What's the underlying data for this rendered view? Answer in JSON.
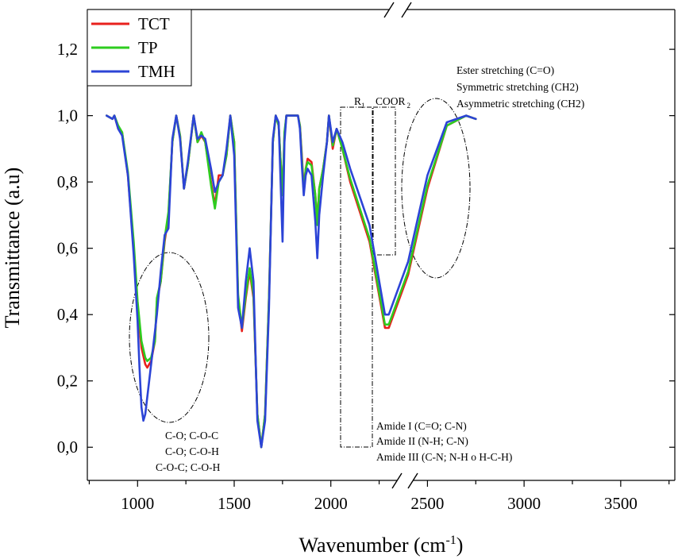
{
  "chart_data": {
    "type": "line",
    "title": "",
    "xlabel": "Wavenumber (cm",
    "xlabel_sup": "-1",
    "xlabel_close": ")",
    "ylabel": "Transmittance (a.u)",
    "xlim": [
      740,
      3780
    ],
    "ylim": [
      -0.1,
      1.32
    ],
    "x_axis_break": [
      1740,
      1810
    ],
    "x_ticks": [
      1000,
      1500,
      2000,
      2500,
      3000,
      3500
    ],
    "x_tick_labels": [
      "1000",
      "1500",
      "2000",
      "2500",
      "3000",
      "3500"
    ],
    "y_ticks": [
      0.0,
      0.2,
      0.4,
      0.6,
      0.8,
      1.0,
      1.2
    ],
    "y_tick_labels": [
      "0,0",
      "0,2",
      "0,4",
      "0,6",
      "0,8",
      "1,0",
      "1,2"
    ],
    "legend": {
      "position": "top-left",
      "entries": [
        "TCT",
        "TP",
        "TMH"
      ]
    },
    "series": [
      {
        "name": "TCT",
        "color": "#e8211d",
        "points": [
          [
            840,
            1.0
          ],
          [
            870,
            0.99
          ],
          [
            880,
            1.0
          ],
          [
            900,
            0.96
          ],
          [
            920,
            0.95
          ],
          [
            950,
            0.82
          ],
          [
            980,
            0.6
          ],
          [
            1000,
            0.42
          ],
          [
            1020,
            0.3
          ],
          [
            1040,
            0.25
          ],
          [
            1050,
            0.24
          ],
          [
            1070,
            0.26
          ],
          [
            1090,
            0.32
          ],
          [
            1100,
            0.44
          ],
          [
            1120,
            0.5
          ],
          [
            1140,
            0.62
          ],
          [
            1160,
            0.7
          ],
          [
            1180,
            0.92
          ],
          [
            1200,
            1.0
          ],
          [
            1220,
            0.94
          ],
          [
            1240,
            0.78
          ],
          [
            1260,
            0.85
          ],
          [
            1290,
            1.0
          ],
          [
            1310,
            0.92
          ],
          [
            1330,
            0.94
          ],
          [
            1350,
            0.92
          ],
          [
            1380,
            0.8
          ],
          [
            1400,
            0.73
          ],
          [
            1420,
            0.82
          ],
          [
            1440,
            0.82
          ],
          [
            1460,
            0.88
          ],
          [
            1480,
            1.0
          ],
          [
            1500,
            0.92
          ],
          [
            1520,
            0.45
          ],
          [
            1540,
            0.35
          ],
          [
            1560,
            0.45
          ],
          [
            1580,
            0.53
          ],
          [
            1600,
            0.45
          ],
          [
            1620,
            0.1
          ],
          [
            1640,
            0.0
          ],
          [
            1660,
            0.1
          ],
          [
            1680,
            0.45
          ],
          [
            1700,
            0.92
          ],
          [
            1715,
            1.0
          ],
          [
            1730,
            0.97
          ],
          [
            1750,
            0.76
          ],
          [
            1760,
            0.94
          ],
          [
            1770,
            1.0
          ],
          [
            1790,
            1.0
          ],
          [
            1810,
            1.0
          ],
          [
            1830,
            1.0
          ],
          [
            1840,
            0.97
          ],
          [
            1850,
            0.88
          ],
          [
            1860,
            0.78
          ],
          [
            1870,
            0.84
          ],
          [
            1880,
            0.87
          ],
          [
            1900,
            0.86
          ],
          [
            1920,
            0.76
          ],
          [
            1930,
            0.68
          ],
          [
            1940,
            0.78
          ],
          [
            1960,
            0.84
          ],
          [
            1980,
            0.92
          ],
          [
            1990,
            1.0
          ],
          [
            2010,
            0.9
          ],
          [
            2030,
            0.96
          ],
          [
            2060,
            0.9
          ],
          [
            2100,
            0.8
          ],
          [
            2200,
            0.62
          ],
          [
            2280,
            0.36
          ],
          [
            2300,
            0.36
          ],
          [
            2400,
            0.52
          ],
          [
            2500,
            0.78
          ],
          [
            2600,
            0.97
          ],
          [
            2700,
            1.0
          ],
          [
            2750,
            0.99
          ]
        ]
      },
      {
        "name": "TP",
        "color": "#2ecc1f",
        "points": [
          [
            840,
            1.0
          ],
          [
            870,
            0.99
          ],
          [
            880,
            1.0
          ],
          [
            900,
            0.97
          ],
          [
            920,
            0.95
          ],
          [
            950,
            0.83
          ],
          [
            980,
            0.62
          ],
          [
            1000,
            0.44
          ],
          [
            1020,
            0.32
          ],
          [
            1040,
            0.27
          ],
          [
            1050,
            0.26
          ],
          [
            1070,
            0.27
          ],
          [
            1090,
            0.32
          ],
          [
            1100,
            0.45
          ],
          [
            1120,
            0.5
          ],
          [
            1140,
            0.63
          ],
          [
            1160,
            0.71
          ],
          [
            1180,
            0.92
          ],
          [
            1200,
            1.0
          ],
          [
            1220,
            0.94
          ],
          [
            1240,
            0.78
          ],
          [
            1260,
            0.85
          ],
          [
            1290,
            1.0
          ],
          [
            1310,
            0.92
          ],
          [
            1330,
            0.95
          ],
          [
            1350,
            0.92
          ],
          [
            1380,
            0.79
          ],
          [
            1400,
            0.72
          ],
          [
            1420,
            0.8
          ],
          [
            1440,
            0.82
          ],
          [
            1460,
            0.88
          ],
          [
            1480,
            1.0
          ],
          [
            1500,
            0.92
          ],
          [
            1520,
            0.46
          ],
          [
            1540,
            0.36
          ],
          [
            1560,
            0.46
          ],
          [
            1580,
            0.54
          ],
          [
            1600,
            0.46
          ],
          [
            1620,
            0.1
          ],
          [
            1640,
            0.0
          ],
          [
            1660,
            0.1
          ],
          [
            1680,
            0.45
          ],
          [
            1700,
            0.92
          ],
          [
            1715,
            1.0
          ],
          [
            1730,
            0.97
          ],
          [
            1750,
            0.76
          ],
          [
            1760,
            0.95
          ],
          [
            1770,
            1.0
          ],
          [
            1790,
            1.0
          ],
          [
            1810,
            1.0
          ],
          [
            1830,
            1.0
          ],
          [
            1840,
            0.97
          ],
          [
            1850,
            0.87
          ],
          [
            1860,
            0.77
          ],
          [
            1870,
            0.84
          ],
          [
            1880,
            0.86
          ],
          [
            1900,
            0.85
          ],
          [
            1920,
            0.76
          ],
          [
            1930,
            0.67
          ],
          [
            1940,
            0.78
          ],
          [
            1960,
            0.84
          ],
          [
            1980,
            0.92
          ],
          [
            1990,
            1.0
          ],
          [
            2010,
            0.91
          ],
          [
            2030,
            0.96
          ],
          [
            2060,
            0.9
          ],
          [
            2100,
            0.81
          ],
          [
            2200,
            0.63
          ],
          [
            2280,
            0.37
          ],
          [
            2300,
            0.37
          ],
          [
            2400,
            0.53
          ],
          [
            2500,
            0.79
          ],
          [
            2600,
            0.97
          ],
          [
            2700,
            1.0
          ],
          [
            2750,
            0.99
          ]
        ]
      },
      {
        "name": "TMH",
        "color": "#2c44d6",
        "points": [
          [
            840,
            1.0
          ],
          [
            870,
            0.99
          ],
          [
            880,
            1.0
          ],
          [
            900,
            0.96
          ],
          [
            920,
            0.94
          ],
          [
            950,
            0.82
          ],
          [
            980,
            0.58
          ],
          [
            1000,
            0.38
          ],
          [
            1010,
            0.24
          ],
          [
            1020,
            0.12
          ],
          [
            1030,
            0.08
          ],
          [
            1040,
            0.1
          ],
          [
            1060,
            0.2
          ],
          [
            1080,
            0.3
          ],
          [
            1100,
            0.4
          ],
          [
            1120,
            0.53
          ],
          [
            1140,
            0.64
          ],
          [
            1160,
            0.66
          ],
          [
            1180,
            0.93
          ],
          [
            1200,
            1.0
          ],
          [
            1220,
            0.93
          ],
          [
            1240,
            0.78
          ],
          [
            1260,
            0.86
          ],
          [
            1290,
            1.0
          ],
          [
            1310,
            0.93
          ],
          [
            1330,
            0.94
          ],
          [
            1350,
            0.93
          ],
          [
            1380,
            0.84
          ],
          [
            1400,
            0.77
          ],
          [
            1420,
            0.8
          ],
          [
            1440,
            0.82
          ],
          [
            1460,
            0.9
          ],
          [
            1480,
            1.0
          ],
          [
            1500,
            0.88
          ],
          [
            1520,
            0.42
          ],
          [
            1540,
            0.36
          ],
          [
            1560,
            0.5
          ],
          [
            1580,
            0.6
          ],
          [
            1600,
            0.5
          ],
          [
            1620,
            0.08
          ],
          [
            1640,
            0.0
          ],
          [
            1660,
            0.08
          ],
          [
            1680,
            0.42
          ],
          [
            1700,
            0.93
          ],
          [
            1715,
            1.0
          ],
          [
            1730,
            0.98
          ],
          [
            1750,
            0.62
          ],
          [
            1760,
            0.92
          ],
          [
            1770,
            1.0
          ],
          [
            1790,
            1.0
          ],
          [
            1810,
            1.0
          ],
          [
            1830,
            1.0
          ],
          [
            1840,
            0.96
          ],
          [
            1850,
            0.85
          ],
          [
            1860,
            0.76
          ],
          [
            1870,
            0.82
          ],
          [
            1880,
            0.84
          ],
          [
            1900,
            0.82
          ],
          [
            1920,
            0.68
          ],
          [
            1930,
            0.57
          ],
          [
            1940,
            0.7
          ],
          [
            1960,
            0.82
          ],
          [
            1980,
            0.92
          ],
          [
            1990,
            1.0
          ],
          [
            2010,
            0.92
          ],
          [
            2030,
            0.96
          ],
          [
            2060,
            0.92
          ],
          [
            2100,
            0.84
          ],
          [
            2200,
            0.67
          ],
          [
            2280,
            0.4
          ],
          [
            2300,
            0.4
          ],
          [
            2400,
            0.56
          ],
          [
            2500,
            0.82
          ],
          [
            2600,
            0.98
          ],
          [
            2700,
            1.0
          ],
          [
            2750,
            0.99
          ]
        ]
      }
    ],
    "annotations": {
      "left_peak": [
        "C-O; C-O-C",
        "C-O; C-O-H",
        "C-O-C; C-O-H"
      ],
      "amide": [
        "Amide I (C=O; C-N)",
        "Amide II (N-H; C-N)",
        "Amide III (C-N; N-H o H-C-H)"
      ],
      "ester": [
        "Ester stretching (C=O)",
        "Symmetric stretching (CH2)",
        "Asymmetric stretching (CH2)"
      ],
      "r1": "R",
      "r1_sub": "1",
      "coor": "COOR",
      "coor_sub": "2"
    }
  }
}
